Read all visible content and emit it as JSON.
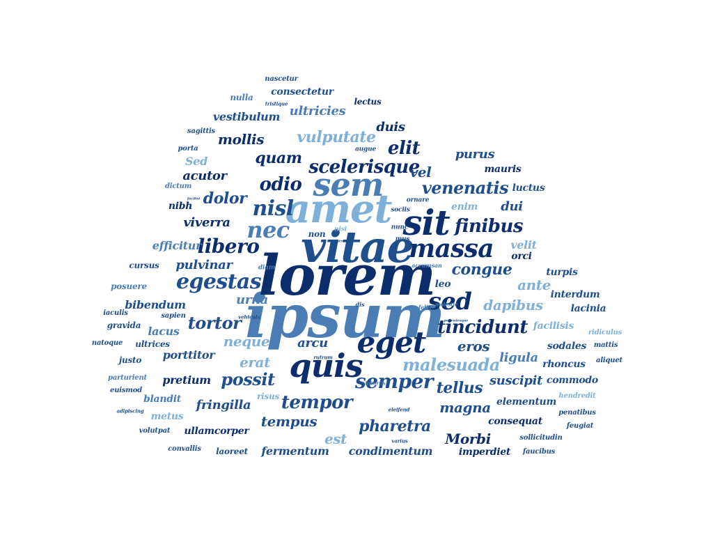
{
  "word_cloud": {
    "words": [
      {
        "text": "ipsum",
        "weight": 100,
        "color": "#4a7db3"
      },
      {
        "text": "lorem",
        "weight": 98,
        "color": "#0b2d6b"
      },
      {
        "text": "vitae",
        "weight": 80,
        "color": "#1f4e8c"
      },
      {
        "text": "amet",
        "weight": 72,
        "color": "#7fb0d8"
      },
      {
        "text": "sem",
        "weight": 62,
        "color": "#4a7db3"
      },
      {
        "text": "sit",
        "weight": 62,
        "color": "#0b2d6b"
      },
      {
        "text": "quis",
        "weight": 60,
        "color": "#0b2d6b"
      },
      {
        "text": "eget",
        "weight": 58,
        "color": "#0b2d6b"
      },
      {
        "text": "massa",
        "weight": 50,
        "color": "#0b2d6b"
      },
      {
        "text": "sed",
        "weight": 48,
        "color": "#0b2d6b"
      },
      {
        "text": "nec",
        "weight": 46,
        "color": "#4a7db3"
      },
      {
        "text": "nisl",
        "weight": 44,
        "color": "#1f4e8c"
      },
      {
        "text": "egestas",
        "weight": 42,
        "color": "#1f4e8c"
      },
      {
        "text": "libero",
        "weight": 40,
        "color": "#0b2d6b"
      },
      {
        "text": "semper",
        "weight": 40,
        "color": "#1f4e8c"
      },
      {
        "text": "scelerisque",
        "weight": 38,
        "color": "#0b2d6b"
      },
      {
        "text": "tincidunt",
        "weight": 36,
        "color": "#0b2d6b"
      },
      {
        "text": "malesuada",
        "weight": 34,
        "color": "#7fb0d8"
      },
      {
        "text": "tempor",
        "weight": 34,
        "color": "#1f4e8c"
      },
      {
        "text": "possit",
        "weight": 32,
        "color": "#1f4e8c"
      },
      {
        "text": "tortor",
        "weight": 32,
        "color": "#1f4e8c"
      },
      {
        "text": "odio",
        "weight": 32,
        "color": "#0b2d6b"
      },
      {
        "text": "finibus",
        "weight": 32,
        "color": "#0b2d6b"
      },
      {
        "text": "venenatis",
        "weight": 30,
        "color": "#1f4e8c"
      },
      {
        "text": "vulputate",
        "weight": 30,
        "color": "#7fb0d8"
      },
      {
        "text": "quam",
        "weight": 30,
        "color": "#0b2d6b"
      },
      {
        "text": "elit",
        "weight": 30,
        "color": "#0b2d6b"
      },
      {
        "text": "dolor",
        "weight": 28,
        "color": "#1f4e8c"
      },
      {
        "text": "dapibus",
        "weight": 28,
        "color": "#7fb0d8"
      },
      {
        "text": "pharetra",
        "weight": 28,
        "color": "#1f4e8c"
      },
      {
        "text": "tellus",
        "weight": 28,
        "color": "#1f4e8c"
      },
      {
        "text": "congue",
        "weight": 28,
        "color": "#1f4e8c"
      },
      {
        "text": "ante",
        "weight": 26,
        "color": "#7fb0d8"
      },
      {
        "text": "neque",
        "weight": 26,
        "color": "#7fb0d8"
      },
      {
        "text": "erat",
        "weight": 26,
        "color": "#7fb0d8"
      },
      {
        "text": "tempus",
        "weight": 26,
        "color": "#1f4e8c"
      },
      {
        "text": "magna",
        "weight": 26,
        "color": "#1f4e8c"
      },
      {
        "text": "Morbi",
        "weight": 26,
        "color": "#0b2d6b"
      },
      {
        "text": "eros",
        "weight": 26,
        "color": "#1f4e8c"
      },
      {
        "text": "est",
        "weight": 26,
        "color": "#7fb0d8"
      },
      {
        "text": "viverra",
        "weight": 24,
        "color": "#0b2d6b"
      },
      {
        "text": "pulvinar",
        "weight": 24,
        "color": "#1f4e8c"
      },
      {
        "text": "mollis",
        "weight": 24,
        "color": "#0b2d6b"
      },
      {
        "text": "ligula",
        "weight": 24,
        "color": "#4a7db3"
      },
      {
        "text": "suscipit",
        "weight": 24,
        "color": "#1f4e8c"
      },
      {
        "text": "fermentum",
        "weight": 22,
        "color": "#1f4e8c"
      },
      {
        "text": "condimentum",
        "weight": 22,
        "color": "#1f4e8c"
      },
      {
        "text": "fringilla",
        "weight": 22,
        "color": "#1f4e8c"
      },
      {
        "text": "vel",
        "weight": 22,
        "color": "#1f4e8c"
      },
      {
        "text": "purus",
        "weight": 22,
        "color": "#1f4e8c"
      },
      {
        "text": "duis",
        "weight": 22,
        "color": "#0b2d6b"
      },
      {
        "text": "ultricies",
        "weight": 22,
        "color": "#4a7db3"
      },
      {
        "text": "urna",
        "weight": 22,
        "color": "#4a7db3"
      },
      {
        "text": "arcu",
        "weight": 20,
        "color": "#1f4e8c"
      },
      {
        "text": "acutor",
        "weight": 20,
        "color": "#0b2d6b"
      },
      {
        "text": "porttitor",
        "weight": 20,
        "color": "#1f4e8c"
      },
      {
        "text": "pretium",
        "weight": 20,
        "color": "#0b2d6b"
      },
      {
        "text": "efficitur",
        "weight": 20,
        "color": "#4a7db3"
      },
      {
        "text": "bibendum",
        "weight": 20,
        "color": "#1f4e8c"
      },
      {
        "text": "lacus",
        "weight": 20,
        "color": "#4a7db3"
      },
      {
        "text": "vestibulum",
        "weight": 20,
        "color": "#1f4e8c"
      },
      {
        "text": "dui",
        "weight": 20,
        "color": "#1f4e8c"
      },
      {
        "text": "mauris",
        "weight": 18,
        "color": "#0b2d6b"
      },
      {
        "text": "velit",
        "weight": 18,
        "color": "#7fb0d8"
      },
      {
        "text": "Sed",
        "weight": 18,
        "color": "#7fb0d8"
      },
      {
        "text": "nibh",
        "weight": 18,
        "color": "#0b2d6b"
      },
      {
        "text": "enim",
        "weight": 18,
        "color": "#7fb0d8"
      },
      {
        "text": "leo",
        "weight": 18,
        "color": "#1f4e8c"
      },
      {
        "text": "consectetur",
        "weight": 18,
        "color": "#1f4e8c"
      },
      {
        "text": "laoreet",
        "weight": 16,
        "color": "#1f4e8c"
      },
      {
        "text": "ullamcorper",
        "weight": 16,
        "color": "#0b2d6b"
      },
      {
        "text": "imperdiet",
        "weight": 16,
        "color": "#0b2d6b"
      },
      {
        "text": "elementum",
        "weight": 16,
        "color": "#1f4e8c"
      },
      {
        "text": "consequat",
        "weight": 16,
        "color": "#0b2d6b"
      },
      {
        "text": "commodo",
        "weight": 16,
        "color": "#1f4e8c"
      },
      {
        "text": "rhoncus",
        "weight": 16,
        "color": "#1f4e8c"
      },
      {
        "text": "sodales",
        "weight": 16,
        "color": "#1f4e8c"
      },
      {
        "text": "facilisis",
        "weight": 16,
        "color": "#7fb0d8"
      },
      {
        "text": "lacinia",
        "weight": 16,
        "color": "#1f4e8c"
      },
      {
        "text": "interdum",
        "weight": 16,
        "color": "#1f4e8c"
      },
      {
        "text": "turpis",
        "weight": 16,
        "color": "#1f4e8c"
      },
      {
        "text": "orci",
        "weight": 16,
        "color": "#0b2d6b"
      },
      {
        "text": "luctus",
        "weight": 16,
        "color": "#1f4e8c"
      },
      {
        "text": "blandit",
        "weight": 16,
        "color": "#4a7db3"
      },
      {
        "text": "metus",
        "weight": 16,
        "color": "#7fb0d8"
      },
      {
        "text": "risus",
        "weight": 14,
        "color": "#7fb0d8"
      },
      {
        "text": "cursus",
        "weight": 14,
        "color": "#1f4e8c"
      },
      {
        "text": "posuere",
        "weight": 14,
        "color": "#4a7db3"
      },
      {
        "text": "gravida",
        "weight": 14,
        "color": "#1f4e8c"
      },
      {
        "text": "ultrices",
        "weight": 14,
        "color": "#1f4e8c"
      },
      {
        "text": "justo",
        "weight": 14,
        "color": "#1f4e8c"
      },
      {
        "text": "lectus",
        "weight": 14,
        "color": "#0b2d6b"
      },
      {
        "text": "nulla",
        "weight": 14,
        "color": "#4a7db3"
      },
      {
        "text": "hendredit",
        "weight": 12,
        "color": "#7fb0d8"
      },
      {
        "text": "penatibus",
        "weight": 12,
        "color": "#1f4e8c"
      },
      {
        "text": "feugiat",
        "weight": 12,
        "color": "#1f4e8c"
      },
      {
        "text": "faucibus",
        "weight": 12,
        "color": "#1f4e8c"
      },
      {
        "text": "sollicitudin",
        "weight": 12,
        "color": "#1f4e8c"
      },
      {
        "text": "ridiculus",
        "weight": 12,
        "color": "#7fb0d8"
      },
      {
        "text": "mattis",
        "weight": 12,
        "color": "#1f4e8c"
      },
      {
        "text": "aliquet",
        "weight": 12,
        "color": "#1f4e8c"
      },
      {
        "text": "convallis",
        "weight": 12,
        "color": "#1f4e8c"
      },
      {
        "text": "volutpat",
        "weight": 12,
        "color": "#1f4e8c"
      },
      {
        "text": "euismod",
        "weight": 12,
        "color": "#1f4e8c"
      },
      {
        "text": "parturient",
        "weight": 12,
        "color": "#4a7db3"
      },
      {
        "text": "natoque",
        "weight": 12,
        "color": "#1f4e8c"
      },
      {
        "text": "iaculis",
        "weight": 12,
        "color": "#1f4e8c"
      },
      {
        "text": "sapien",
        "weight": 12,
        "color": "#1f4e8c"
      },
      {
        "text": "dictum",
        "weight": 12,
        "color": "#4a7db3"
      },
      {
        "text": "porta",
        "weight": 12,
        "color": "#1f4e8c"
      },
      {
        "text": "sagittis",
        "weight": 12,
        "color": "#1f4e8c"
      },
      {
        "text": "non",
        "weight": 14,
        "color": "#1f4e8c"
      },
      {
        "text": "nunc",
        "weight": 10,
        "color": "#1f4e8c"
      },
      {
        "text": "mus",
        "weight": 10,
        "color": "#1f4e8c"
      },
      {
        "text": "nisi",
        "weight": 10,
        "color": "#7fb0d8"
      },
      {
        "text": "sociis",
        "weight": 10,
        "color": "#1f4e8c"
      },
      {
        "text": "ornare",
        "weight": 10,
        "color": "#1f4e8c"
      },
      {
        "text": "augue",
        "weight": 10,
        "color": "#1f4e8c"
      },
      {
        "text": "diam",
        "weight": 10,
        "color": "#4a7db3"
      },
      {
        "text": "accumsan",
        "weight": 10,
        "color": "#4a7db3"
      },
      {
        "text": "felis",
        "weight": 10,
        "color": "#4a7db3"
      },
      {
        "text": "dis",
        "weight": 10,
        "color": "#1f4e8c"
      },
      {
        "text": "molestie",
        "weight": 9,
        "color": "#4a7db3"
      },
      {
        "text": "vehicula",
        "weight": 9,
        "color": "#1f4e8c"
      },
      {
        "text": "rutrum",
        "weight": 9,
        "color": "#1f4e8c"
      },
      {
        "text": "lobortis",
        "weight": 9,
        "color": "#4a7db3"
      },
      {
        "text": "eleifend",
        "weight": 9,
        "color": "#1f4e8c"
      },
      {
        "text": "varius",
        "weight": 9,
        "color": "#1f4e8c"
      },
      {
        "text": "adipiscing",
        "weight": 9,
        "color": "#1f4e8c"
      },
      {
        "text": "nascetur",
        "weight": 11,
        "color": "#1f4e8c"
      },
      {
        "text": "tristique",
        "weight": 8,
        "color": "#1f4e8c"
      },
      {
        "text": "pellentesque",
        "weight": 7,
        "color": "#1f4e8c"
      },
      {
        "text": "nostrud",
        "weight": 6,
        "color": "#1f4e8c"
      },
      {
        "text": "facilisi",
        "weight": 6,
        "color": "#1f4e8c"
      }
    ]
  }
}
